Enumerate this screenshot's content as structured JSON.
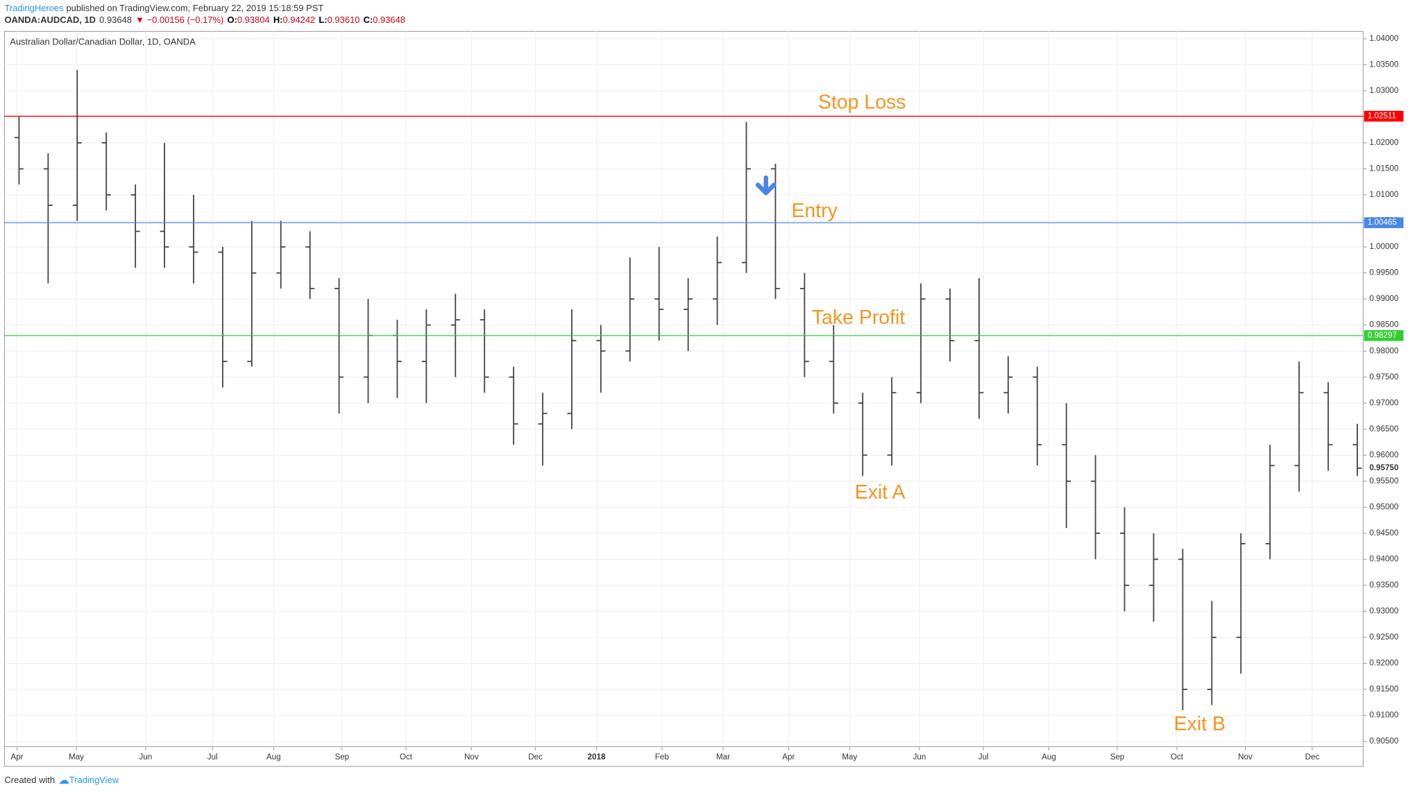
{
  "header": {
    "author": "TradingHeroes",
    "published": "published on TradingView.com, February 22, 2019 15:18:59 PST",
    "symbol": "OANDA:AUDCAD, 1D",
    "last": "0.93648",
    "change": "▼ −0.00156 (−0.17%)",
    "ohlc": [
      [
        "O:",
        "0.93804"
      ],
      [
        "H:",
        "0.94242"
      ],
      [
        "L:",
        "0.93610"
      ],
      [
        "C:",
        "0.93648"
      ]
    ]
  },
  "footer": {
    "prefix": "Created with",
    "brand": "TradingView"
  },
  "chart_data": {
    "type": "ohlc",
    "title": "Australian Dollar/Canadian Dollar, 1D, OANDA",
    "color": "#444444",
    "x": [
      1,
      3,
      5,
      7,
      9,
      11,
      13,
      15,
      17,
      19,
      21,
      23,
      25,
      27,
      29,
      31,
      33,
      35,
      37,
      39,
      41,
      43,
      45,
      47,
      49,
      51,
      53,
      55,
      57,
      59,
      61,
      63,
      65,
      67,
      69,
      71,
      73,
      75,
      77,
      79,
      81,
      83,
      85,
      87,
      89,
      91,
      93
    ],
    "open": [
      1.021,
      1.015,
      1.008,
      1.02,
      1.01,
      1.003,
      1.0,
      0.999,
      0.978,
      0.995,
      1.0,
      0.992,
      0.975,
      0.983,
      0.978,
      0.985,
      0.986,
      0.975,
      0.966,
      0.968,
      0.982,
      0.98,
      0.99,
      0.988,
      0.99,
      0.997,
      1.015,
      0.992,
      0.978,
      0.97,
      0.96,
      0.972,
      0.99,
      0.982,
      0.972,
      0.975,
      0.962,
      0.955,
      0.945,
      0.935,
      0.94,
      0.915,
      0.925,
      0.943,
      0.958,
      0.972,
      0.962
    ],
    "high": [
      1.025,
      1.018,
      1.034,
      1.022,
      1.012,
      1.02,
      1.01,
      1.0,
      1.005,
      1.005,
      1.003,
      0.994,
      0.99,
      0.986,
      0.988,
      0.991,
      0.988,
      0.977,
      0.972,
      0.988,
      0.985,
      0.998,
      1.0,
      0.994,
      1.002,
      1.024,
      1.016,
      0.995,
      0.985,
      0.972,
      0.975,
      0.993,
      0.992,
      0.994,
      0.979,
      0.977,
      0.97,
      0.96,
      0.95,
      0.945,
      0.942,
      0.932,
      0.945,
      0.962,
      0.978,
      0.974,
      0.966
    ],
    "low": [
      1.012,
      0.993,
      1.005,
      1.007,
      0.996,
      0.996,
      0.993,
      0.973,
      0.977,
      0.992,
      0.99,
      0.968,
      0.97,
      0.971,
      0.97,
      0.975,
      0.972,
      0.962,
      0.958,
      0.965,
      0.972,
      0.978,
      0.982,
      0.98,
      0.985,
      0.995,
      0.99,
      0.975,
      0.968,
      0.956,
      0.958,
      0.97,
      0.978,
      0.967,
      0.968,
      0.958,
      0.946,
      0.94,
      0.93,
      0.928,
      0.911,
      0.912,
      0.918,
      0.94,
      0.953,
      0.957,
      0.956
    ],
    "close": [
      1.015,
      1.008,
      1.02,
      1.01,
      1.003,
      1.0,
      0.999,
      0.978,
      0.995,
      1.0,
      0.992,
      0.975,
      0.983,
      0.978,
      0.985,
      0.986,
      0.975,
      0.966,
      0.968,
      0.982,
      0.98,
      0.99,
      0.988,
      0.99,
      0.997,
      1.015,
      0.992,
      0.978,
      0.97,
      0.96,
      0.972,
      0.99,
      0.982,
      0.972,
      0.975,
      0.962,
      0.955,
      0.945,
      0.935,
      0.94,
      0.915,
      0.925,
      0.943,
      0.958,
      0.972,
      0.962,
      0.9575
    ],
    "xlim": [
      0,
      93.4
    ],
    "xticks": [
      {
        "value": 0.86,
        "label": "Apr"
      },
      {
        "value": 4.94,
        "label": "May"
      },
      {
        "value": 9.7,
        "label": "Jun"
      },
      {
        "value": 14.3,
        "label": "Jul"
      },
      {
        "value": 18.5,
        "label": "Aug"
      },
      {
        "value": 23.2,
        "label": "Sep"
      },
      {
        "value": 27.6,
        "label": "Oct"
      },
      {
        "value": 32.1,
        "label": "Nov"
      },
      {
        "value": 36.5,
        "label": "Dec"
      },
      {
        "value": 40.7,
        "label": "2018"
      },
      {
        "value": 45.2,
        "label": "Feb"
      },
      {
        "value": 49.4,
        "label": "Mar"
      },
      {
        "value": 53.9,
        "label": "Apr"
      },
      {
        "value": 58.1,
        "label": "May"
      },
      {
        "value": 62.9,
        "label": "Jun"
      },
      {
        "value": 67.3,
        "label": "Jul"
      },
      {
        "value": 71.8,
        "label": "Aug"
      },
      {
        "value": 76.5,
        "label": "Sep"
      },
      {
        "value": 80.6,
        "label": "Oct"
      },
      {
        "value": 85.3,
        "label": "Nov"
      },
      {
        "value": 89.9,
        "label": "Dec"
      }
    ],
    "ylim": [
      0.904,
      1.0414
    ],
    "yticks": [
      {
        "value": 0.905,
        "label": "0.90500"
      },
      {
        "value": 0.91,
        "label": "0.91000"
      },
      {
        "value": 0.915,
        "label": "0.91500"
      },
      {
        "value": 0.92,
        "label": "0.92000"
      },
      {
        "value": 0.925,
        "label": "0.92500"
      },
      {
        "value": 0.93,
        "label": "0.93000"
      },
      {
        "value": 0.935,
        "label": "0.93500"
      },
      {
        "value": 0.94,
        "label": "0.94000"
      },
      {
        "value": 0.945,
        "label": "0.94500"
      },
      {
        "value": 0.95,
        "label": "0.95000"
      },
      {
        "value": 0.955,
        "label": "0.95500"
      },
      {
        "value": 0.96,
        "label": "0.96000"
      },
      {
        "value": 0.965,
        "label": "0.96500"
      },
      {
        "value": 0.97,
        "label": "0.97000"
      },
      {
        "value": 0.975,
        "label": "0.97500"
      },
      {
        "value": 0.98,
        "label": "0.98000"
      },
      {
        "value": 0.985,
        "label": "0.98500"
      },
      {
        "value": 0.99,
        "label": "0.99000"
      },
      {
        "value": 0.995,
        "label": "0.99500"
      },
      {
        "value": 1.0,
        "label": "1.00000"
      },
      {
        "value": 1.005,
        "label": "1.00500"
      },
      {
        "value": 1.01,
        "label": "1.01000"
      },
      {
        "value": 1.015,
        "label": "1.01500"
      },
      {
        "value": 1.02,
        "label": "1.02000"
      },
      {
        "value": 1.025,
        "label": "1.02500"
      },
      {
        "value": 1.03,
        "label": "1.03000"
      },
      {
        "value": 1.035,
        "label": "1.03500"
      },
      {
        "value": 1.04,
        "label": "1.04000"
      }
    ],
    "grid": true,
    "price_lines": [
      {
        "value": 1.02511,
        "label": "1.02511",
        "color": "#ff0000"
      },
      {
        "value": 1.00465,
        "label": "1.00465",
        "color": "#4a86e8"
      },
      {
        "value": 0.98297,
        "label": "0.98297",
        "color": "#32cd32"
      }
    ],
    "last_price": {
      "value": 0.9575,
      "label": "0.95750"
    },
    "annotations": [
      "Stop Loss",
      "Entry",
      "Take Profit",
      "Exit A",
      "Exit B"
    ]
  }
}
